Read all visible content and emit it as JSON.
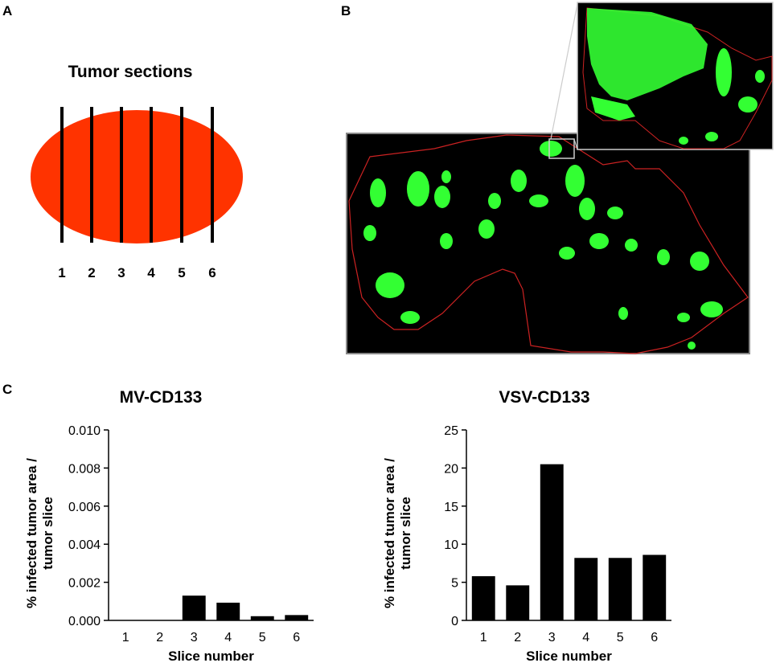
{
  "panels": {
    "a": {
      "letter": "A",
      "title": "Tumor sections",
      "slice_labels": [
        "1",
        "2",
        "3",
        "4",
        "5",
        "6"
      ]
    },
    "b": {
      "letter": "B"
    },
    "c": {
      "letter": "C"
    }
  },
  "colors": {
    "tumor": "#ff3300",
    "fluorescence": "#33ff33",
    "outline": "#cc2222",
    "bars": "#000000"
  },
  "chart_data": [
    {
      "type": "bar",
      "title": "MV-CD133",
      "xlabel": "Slice number",
      "ylabel": "% infected tumor area / tumor slice",
      "categories": [
        "1",
        "2",
        "3",
        "4",
        "5",
        "6"
      ],
      "values": [
        0,
        0,
        0.0013,
        0.00093,
        0.00022,
        0.00028
      ],
      "ylim": [
        0,
        0.01
      ],
      "yticks": [
        "0.000",
        "0.002",
        "0.004",
        "0.006",
        "0.008",
        "0.010"
      ],
      "ytick_values": [
        0,
        0.002,
        0.004,
        0.006,
        0.008,
        0.01
      ],
      "grid": false
    },
    {
      "type": "bar",
      "title": "VSV-CD133",
      "xlabel": "Slice number",
      "ylabel": "% infected tumor area / tumor slice",
      "categories": [
        "1",
        "2",
        "3",
        "4",
        "5",
        "6"
      ],
      "values": [
        5.8,
        4.6,
        20.5,
        8.2,
        8.2,
        8.6
      ],
      "ylim": [
        0,
        25
      ],
      "yticks": [
        "0",
        "5",
        "10",
        "15",
        "20",
        "25"
      ],
      "ytick_values": [
        0,
        5,
        10,
        15,
        20,
        25
      ],
      "grid": false
    }
  ]
}
